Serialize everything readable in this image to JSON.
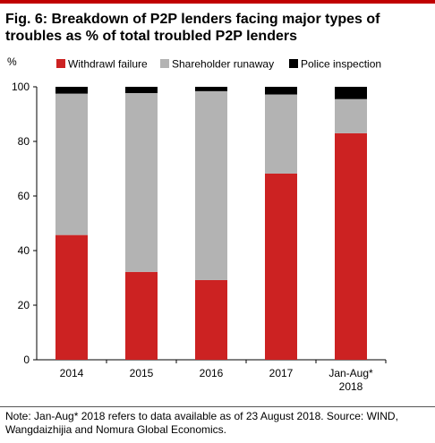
{
  "header": {
    "title_line1": "Fig. 6: Breakdown of P2P lenders facing major types of",
    "title_line2": "troubles as % of total troubled P2P lenders"
  },
  "chart_data": {
    "type": "bar",
    "stacked": true,
    "title": "Fig. 6: Breakdown of P2P lenders facing major types of troubles as % of total troubled P2P lenders",
    "ylabel": "%",
    "xlabel": "",
    "ylim": [
      0,
      100
    ],
    "yticks": [
      "0",
      "20",
      "40",
      "60",
      "80",
      "100"
    ],
    "categories": [
      [
        "2014"
      ],
      [
        "2015"
      ],
      [
        "2016"
      ],
      [
        "2017"
      ],
      [
        "Jan-Aug*",
        "2018"
      ]
    ],
    "series": [
      {
        "name": "Withdrawl failure",
        "color": "#cc2222",
        "values": [
          45.7,
          32.2,
          29.2,
          68.2,
          83.0
        ]
      },
      {
        "name": "Shareholder runaway",
        "color": "#b3b3b3",
        "values": [
          51.8,
          65.5,
          69.2,
          29.0,
          12.5
        ]
      },
      {
        "name": "Police inspection",
        "color": "#000000",
        "values": [
          2.5,
          2.3,
          1.6,
          2.8,
          4.5
        ]
      }
    ],
    "legend_position": "top",
    "grid": false
  },
  "footer": {
    "note_line1": "Note: Jan-Aug* 2018 refers to data available as of 23 August 2018. Source: WIND,",
    "note_line2": "Wangdaizhijia and Nomura Global Economics."
  }
}
